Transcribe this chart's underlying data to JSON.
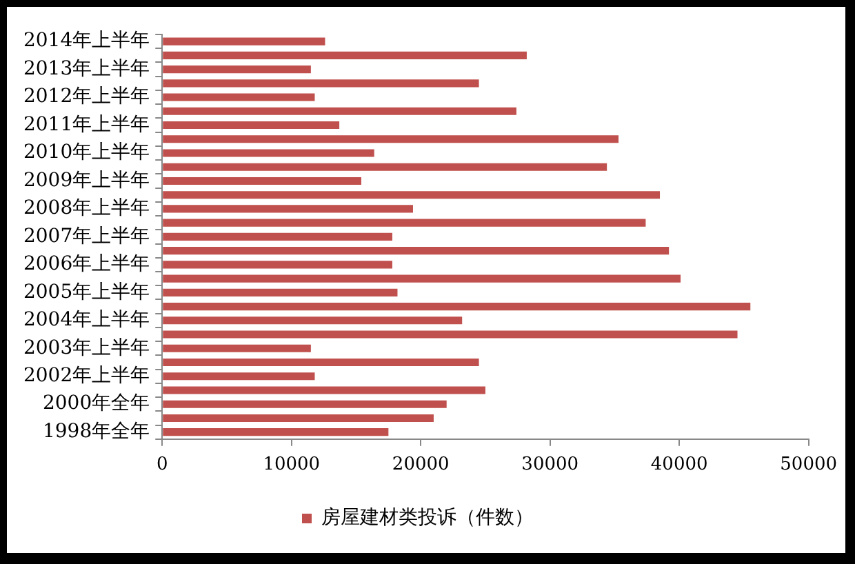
{
  "chart_data": {
    "type": "bar",
    "orientation": "horizontal",
    "categories": [
      "2014年上半年",
      null,
      "2013年上半年",
      null,
      "2012年上半年",
      null,
      "2011年上半年",
      null,
      "2010年上半年",
      null,
      "2009年上半年",
      null,
      "2008年上半年",
      null,
      "2007年上半年",
      null,
      "2006年上半年",
      null,
      "2005年上半年",
      null,
      "2004年上半年",
      null,
      "2003年上半年",
      null,
      "2002年上半年",
      null,
      "2000年全年",
      null,
      "1998年全年"
    ],
    "series": [
      {
        "name": "房屋建材类投诉（件数）",
        "color": "#c0504d",
        "values": [
          12600,
          28200,
          11500,
          24500,
          11800,
          27400,
          13700,
          35300,
          16400,
          34400,
          15400,
          38500,
          19400,
          37400,
          17800,
          39200,
          17800,
          40100,
          18200,
          45500,
          23200,
          44500,
          11500,
          24500,
          11800,
          25000,
          22000,
          21000,
          17500
        ]
      }
    ],
    "xlim": [
      0,
      50000
    ],
    "xticks": [
      0,
      10000,
      20000,
      30000,
      40000,
      50000
    ],
    "grid": false,
    "legend": "bottom"
  }
}
